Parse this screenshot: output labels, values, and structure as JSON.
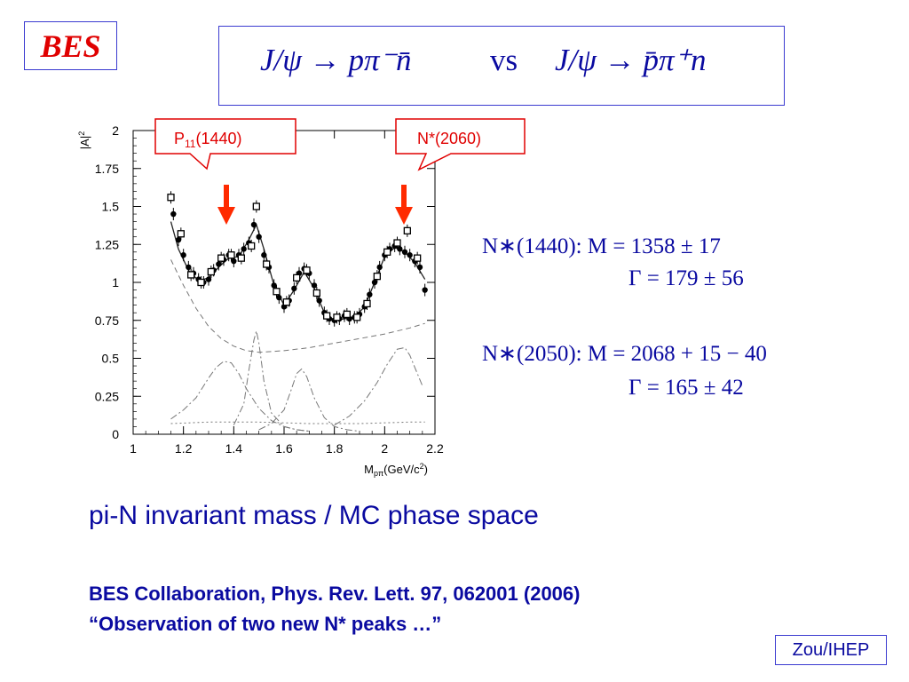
{
  "logo": "BES",
  "title": {
    "left": "J/ψ → pπ⁻n̄",
    "middle": "vs",
    "right": "J/ψ → p̄π⁺n"
  },
  "callouts": [
    {
      "label": "P",
      "sub": "11",
      "rest": "(1440)"
    },
    {
      "label": "N*(2060)",
      "sub": "",
      "rest": ""
    }
  ],
  "params": {
    "n1440_mass": "N∗(1440):  M = 1358 ± 17",
    "n1440_width": "Γ = 179 ± 56",
    "n2050_mass": "N∗(2050): M = 2068 + 15 − 40",
    "n2050_width": "Γ = 165 ± 42"
  },
  "subtitle": "pi-N invariant mass / MC phase space",
  "reference": {
    "line1": "BES Collaboration, Phys. Rev. Lett. 97, 062001 (2006)",
    "line2": "“Observation of two new N* peaks …”"
  },
  "footer_badge": "Zou/IHEP",
  "colors": {
    "accent_blue": "#0a0aa0",
    "callout_red": "#e00000",
    "arrow_red": "#ff2a00",
    "box_border": "#3b3bd0"
  },
  "chart_data": {
    "type": "scatter",
    "xlabel": "M_pπ(GeV/c²)",
    "ylabel": "|A|²",
    "xlim": [
      1,
      2.2
    ],
    "ylim": [
      0,
      2
    ],
    "xticks": [
      "1",
      "1.2",
      "1.4",
      "1.6",
      "1.8",
      "2",
      "2.2"
    ],
    "yticks": [
      "0",
      "0.25",
      "0.5",
      "0.75",
      "1",
      "1.25",
      "1.5",
      "1.75",
      "2"
    ],
    "series": [
      {
        "marker": "filled-circle",
        "points": [
          [
            1.16,
            1.45
          ],
          [
            1.18,
            1.28
          ],
          [
            1.2,
            1.18
          ],
          [
            1.22,
            1.1
          ],
          [
            1.24,
            1.06
          ],
          [
            1.26,
            1.02
          ],
          [
            1.28,
            1.0
          ],
          [
            1.3,
            1.02
          ],
          [
            1.32,
            1.08
          ],
          [
            1.34,
            1.12
          ],
          [
            1.36,
            1.15
          ],
          [
            1.38,
            1.18
          ],
          [
            1.4,
            1.14
          ],
          [
            1.42,
            1.18
          ],
          [
            1.44,
            1.22
          ],
          [
            1.46,
            1.26
          ],
          [
            1.48,
            1.38
          ],
          [
            1.5,
            1.3
          ],
          [
            1.52,
            1.18
          ],
          [
            1.54,
            1.1
          ],
          [
            1.56,
            0.98
          ],
          [
            1.58,
            0.9
          ],
          [
            1.6,
            0.84
          ],
          [
            1.62,
            0.88
          ],
          [
            1.64,
            0.96
          ],
          [
            1.66,
            1.06
          ],
          [
            1.68,
            1.09
          ],
          [
            1.7,
            1.06
          ],
          [
            1.72,
            0.98
          ],
          [
            1.74,
            0.88
          ],
          [
            1.76,
            0.8
          ],
          [
            1.78,
            0.76
          ],
          [
            1.8,
            0.75
          ],
          [
            1.82,
            0.76
          ],
          [
            1.84,
            0.78
          ],
          [
            1.86,
            0.76
          ],
          [
            1.88,
            0.77
          ],
          [
            1.9,
            0.79
          ],
          [
            1.92,
            0.84
          ],
          [
            1.94,
            0.92
          ],
          [
            1.96,
            1.0
          ],
          [
            1.98,
            1.1
          ],
          [
            2.0,
            1.18
          ],
          [
            2.02,
            1.22
          ],
          [
            2.04,
            1.24
          ],
          [
            2.06,
            1.22
          ],
          [
            2.08,
            1.2
          ],
          [
            2.1,
            1.18
          ],
          [
            2.12,
            1.14
          ],
          [
            2.14,
            1.1
          ],
          [
            2.16,
            0.95
          ]
        ]
      },
      {
        "marker": "open-square",
        "points": [
          [
            1.15,
            1.56
          ],
          [
            1.19,
            1.32
          ],
          [
            1.23,
            1.05
          ],
          [
            1.27,
            1.0
          ],
          [
            1.31,
            1.07
          ],
          [
            1.35,
            1.16
          ],
          [
            1.39,
            1.18
          ],
          [
            1.43,
            1.16
          ],
          [
            1.47,
            1.24
          ],
          [
            1.49,
            1.5
          ],
          [
            1.53,
            1.12
          ],
          [
            1.57,
            0.94
          ],
          [
            1.61,
            0.87
          ],
          [
            1.65,
            1.03
          ],
          [
            1.69,
            1.08
          ],
          [
            1.73,
            0.93
          ],
          [
            1.77,
            0.78
          ],
          [
            1.81,
            0.77
          ],
          [
            1.85,
            0.79
          ],
          [
            1.89,
            0.77
          ],
          [
            1.93,
            0.86
          ],
          [
            1.97,
            1.04
          ],
          [
            2.01,
            1.2
          ],
          [
            2.05,
            1.26
          ],
          [
            2.09,
            1.34
          ],
          [
            2.13,
            1.16
          ]
        ]
      }
    ],
    "curves": [
      {
        "style": "solid",
        "x": [
          1.15,
          1.18,
          1.22,
          1.26,
          1.3,
          1.34,
          1.38,
          1.42,
          1.46,
          1.49,
          1.52,
          1.56,
          1.6,
          1.64,
          1.68,
          1.72,
          1.76,
          1.8,
          1.84,
          1.88,
          1.92,
          1.96,
          2.0,
          2.04,
          2.08,
          2.12,
          2.16
        ],
        "y": [
          1.4,
          1.22,
          1.08,
          1.01,
          1.03,
          1.1,
          1.16,
          1.17,
          1.28,
          1.38,
          1.22,
          0.98,
          0.85,
          0.95,
          1.07,
          0.96,
          0.8,
          0.75,
          0.76,
          0.77,
          0.84,
          1.0,
          1.17,
          1.23,
          1.2,
          1.13,
          1.02
        ]
      },
      {
        "style": "dashed",
        "x": [
          1.15,
          1.2,
          1.25,
          1.3,
          1.35,
          1.4,
          1.45,
          1.5,
          1.55,
          1.6,
          1.7,
          1.8,
          1.9,
          2.0,
          2.1,
          2.16
        ],
        "y": [
          1.15,
          0.98,
          0.83,
          0.71,
          0.63,
          0.58,
          0.55,
          0.54,
          0.545,
          0.55,
          0.57,
          0.6,
          0.63,
          0.66,
          0.7,
          0.73
        ]
      },
      {
        "style": "dash-dot",
        "x": [
          1.15,
          1.2,
          1.25,
          1.3,
          1.33,
          1.36,
          1.39,
          1.42,
          1.45,
          1.5,
          1.55,
          1.6,
          1.65,
          1.7
        ],
        "y": [
          0.1,
          0.16,
          0.24,
          0.37,
          0.44,
          0.48,
          0.47,
          0.4,
          0.3,
          0.17,
          0.09,
          0.05,
          0.03,
          0.02
        ]
      },
      {
        "style": "dash-dot",
        "x": [
          1.4,
          1.44,
          1.46,
          1.48,
          1.49,
          1.5,
          1.52,
          1.55,
          1.6,
          1.65,
          1.7
        ],
        "y": [
          0.06,
          0.2,
          0.42,
          0.62,
          0.68,
          0.6,
          0.35,
          0.14,
          0.05,
          0.03,
          0.02
        ]
      },
      {
        "style": "dash-dot",
        "x": [
          1.5,
          1.55,
          1.6,
          1.63,
          1.65,
          1.67,
          1.69,
          1.72,
          1.76,
          1.8,
          1.85,
          1.9
        ],
        "y": [
          0.03,
          0.07,
          0.16,
          0.3,
          0.4,
          0.43,
          0.38,
          0.24,
          0.11,
          0.05,
          0.03,
          0.02
        ]
      },
      {
        "style": "dash-dot",
        "x": [
          1.8,
          1.86,
          1.92,
          1.97,
          2.01,
          2.05,
          2.08,
          2.1,
          2.12,
          2.15
        ],
        "y": [
          0.06,
          0.12,
          0.22,
          0.34,
          0.46,
          0.56,
          0.57,
          0.52,
          0.44,
          0.32
        ]
      },
      {
        "style": "dotted",
        "x": [
          1.15,
          1.3,
          1.5,
          1.7,
          1.9,
          2.1,
          2.16
        ],
        "y": [
          0.07,
          0.08,
          0.08,
          0.07,
          0.07,
          0.08,
          0.08
        ]
      }
    ],
    "markers": [
      {
        "label": "P11(1440)",
        "x": 1.37
      },
      {
        "label": "N*(2060)",
        "x": 2.08
      }
    ]
  }
}
